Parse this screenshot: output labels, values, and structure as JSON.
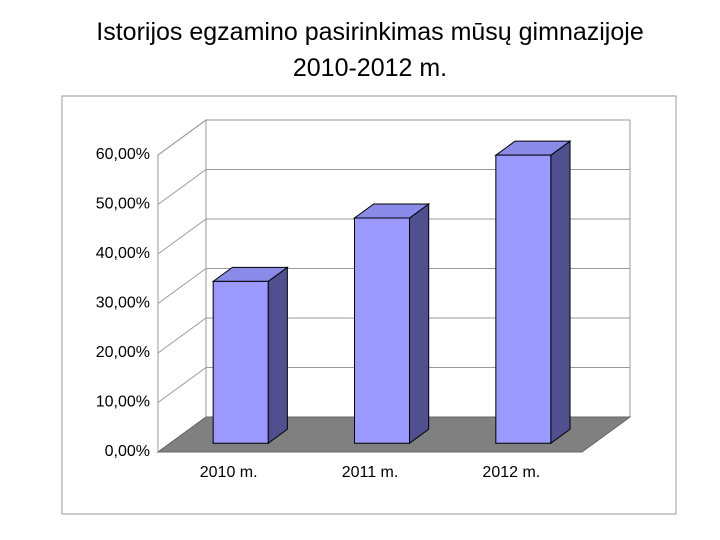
{
  "chart_data": {
    "type": "bar3d",
    "title": "Istorijos egzamino pasirinkimas mūsų gimnazijoje 2010-2012 m.",
    "categories": [
      "2010 m.",
      "2011 m.",
      "2012 m."
    ],
    "values": [
      32.7,
      45.5,
      58.2
    ],
    "color": "#9999ff",
    "ylim": [
      0,
      60
    ],
    "yticks": [
      {
        "value": 0,
        "label": "0,00%"
      },
      {
        "value": 10,
        "label": "10,00%"
      },
      {
        "value": 20,
        "label": "20,00%"
      },
      {
        "value": 30,
        "label": "30,00%"
      },
      {
        "value": 40,
        "label": "40,00%"
      },
      {
        "value": 50,
        "label": "50,00%"
      },
      {
        "value": 60,
        "label": "60,00%"
      }
    ],
    "grid": true
  }
}
